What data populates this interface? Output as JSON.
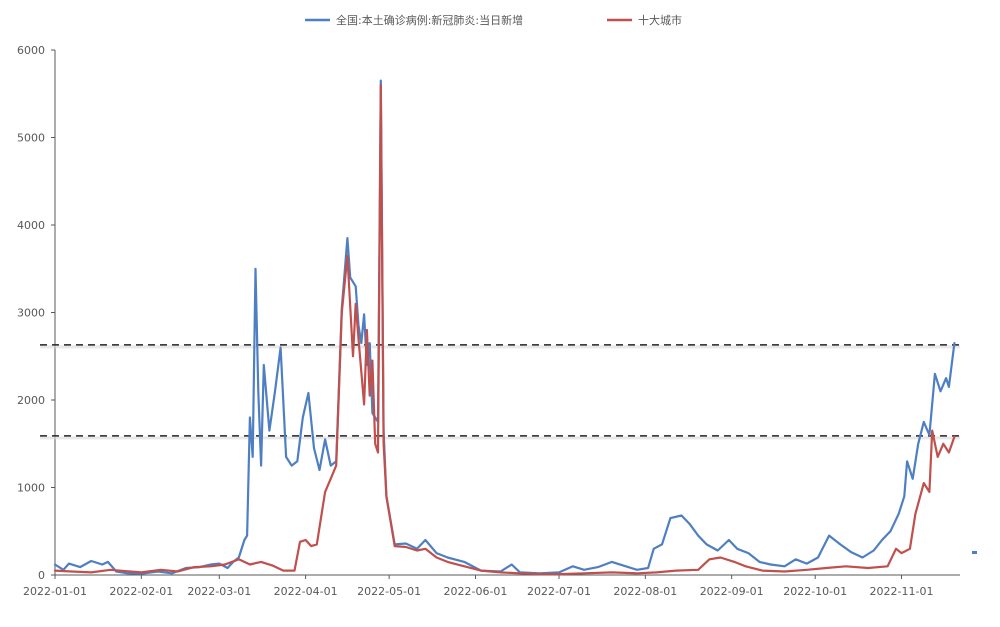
{
  "chart_data": {
    "type": "line",
    "y_ticks": [
      "0",
      "1000",
      "2000",
      "3000",
      "4000",
      "5000",
      "6000"
    ],
    "x_ticks": [
      "2022-01-01",
      "2022-02-01",
      "2022-03-01",
      "2022-04-01",
      "2022-05-01",
      "2022-06-01",
      "2022-07-01",
      "2022-08-01",
      "2022-09-01",
      "2022-10-01",
      "2022-11-01"
    ],
    "ylim": [
      0,
      6000
    ],
    "xlim": [
      "2022-01-01",
      "2022-11-22"
    ],
    "grid": false,
    "legend_position": "top-center",
    "reference_lines": [
      2630,
      1590
    ],
    "series": [
      {
        "name": "全国:本土确诊病例:新冠肺炎:当日新增",
        "color": "#4f7fc3",
        "points": [
          [
            "2022-01-01",
            120
          ],
          [
            "2022-01-04",
            60
          ],
          [
            "2022-01-06",
            130
          ],
          [
            "2022-01-10",
            90
          ],
          [
            "2022-01-14",
            160
          ],
          [
            "2022-01-18",
            120
          ],
          [
            "2022-01-20",
            150
          ],
          [
            "2022-01-23",
            40
          ],
          [
            "2022-01-27",
            20
          ],
          [
            "2022-02-01",
            15
          ],
          [
            "2022-02-07",
            40
          ],
          [
            "2022-02-12",
            20
          ],
          [
            "2022-02-17",
            80
          ],
          [
            "2022-02-22",
            90
          ],
          [
            "2022-02-26",
            120
          ],
          [
            "2022-03-01",
            130
          ],
          [
            "2022-03-04",
            80
          ],
          [
            "2022-03-06",
            150
          ],
          [
            "2022-03-08",
            200
          ],
          [
            "2022-03-10",
            400
          ],
          [
            "2022-03-11",
            450
          ],
          [
            "2022-03-12",
            1800
          ],
          [
            "2022-03-13",
            1350
          ],
          [
            "2022-03-14",
            3500
          ],
          [
            "2022-03-15",
            2100
          ],
          [
            "2022-03-16",
            1250
          ],
          [
            "2022-03-17",
            2400
          ],
          [
            "2022-03-19",
            1650
          ],
          [
            "2022-03-21",
            2100
          ],
          [
            "2022-03-23",
            2600
          ],
          [
            "2022-03-25",
            1350
          ],
          [
            "2022-03-27",
            1250
          ],
          [
            "2022-03-29",
            1300
          ],
          [
            "2022-03-31",
            1800
          ],
          [
            "2022-04-02",
            2080
          ],
          [
            "2022-04-04",
            1450
          ],
          [
            "2022-04-06",
            1200
          ],
          [
            "2022-04-08",
            1550
          ],
          [
            "2022-04-10",
            1250
          ],
          [
            "2022-04-12",
            1300
          ],
          [
            "2022-04-14",
            3050
          ],
          [
            "2022-04-16",
            3850
          ],
          [
            "2022-04-17",
            3400
          ],
          [
            "2022-04-19",
            3300
          ],
          [
            "2022-04-20",
            2850
          ],
          [
            "2022-04-21",
            2650
          ],
          [
            "2022-04-22",
            2980
          ],
          [
            "2022-04-23",
            2400
          ],
          [
            "2022-04-24",
            2650
          ],
          [
            "2022-04-25",
            1850
          ],
          [
            "2022-04-27",
            1750
          ],
          [
            "2022-04-28",
            5650
          ],
          [
            "2022-04-29",
            1650
          ],
          [
            "2022-04-30",
            900
          ],
          [
            "2022-05-03",
            350
          ],
          [
            "2022-05-07",
            360
          ],
          [
            "2022-05-11",
            300
          ],
          [
            "2022-05-14",
            400
          ],
          [
            "2022-05-18",
            250
          ],
          [
            "2022-05-22",
            200
          ],
          [
            "2022-05-28",
            150
          ],
          [
            "2022-06-03",
            50
          ],
          [
            "2022-06-10",
            40
          ],
          [
            "2022-06-14",
            120
          ],
          [
            "2022-06-17",
            30
          ],
          [
            "2022-06-24",
            20
          ],
          [
            "2022-07-01",
            30
          ],
          [
            "2022-07-06",
            100
          ],
          [
            "2022-07-10",
            60
          ],
          [
            "2022-07-15",
            90
          ],
          [
            "2022-07-20",
            150
          ],
          [
            "2022-07-25",
            100
          ],
          [
            "2022-07-29",
            60
          ],
          [
            "2022-08-02",
            80
          ],
          [
            "2022-08-04",
            300
          ],
          [
            "2022-08-07",
            350
          ],
          [
            "2022-08-10",
            650
          ],
          [
            "2022-08-14",
            680
          ],
          [
            "2022-08-17",
            580
          ],
          [
            "2022-08-20",
            450
          ],
          [
            "2022-08-23",
            350
          ],
          [
            "2022-08-27",
            280
          ],
          [
            "2022-08-31",
            400
          ],
          [
            "2022-09-03",
            300
          ],
          [
            "2022-09-07",
            250
          ],
          [
            "2022-09-11",
            150
          ],
          [
            "2022-09-15",
            120
          ],
          [
            "2022-09-20",
            100
          ],
          [
            "2022-09-24",
            180
          ],
          [
            "2022-09-28",
            130
          ],
          [
            "2022-10-02",
            200
          ],
          [
            "2022-10-06",
            450
          ],
          [
            "2022-10-10",
            350
          ],
          [
            "2022-10-14",
            260
          ],
          [
            "2022-10-18",
            200
          ],
          [
            "2022-10-22",
            280
          ],
          [
            "2022-10-25",
            400
          ],
          [
            "2022-10-28",
            500
          ],
          [
            "2022-10-31",
            700
          ],
          [
            "2022-11-02",
            900
          ],
          [
            "2022-11-03",
            1300
          ],
          [
            "2022-11-05",
            1100
          ],
          [
            "2022-11-07",
            1500
          ],
          [
            "2022-11-09",
            1750
          ],
          [
            "2022-11-11",
            1600
          ],
          [
            "2022-11-13",
            2300
          ],
          [
            "2022-11-15",
            2100
          ],
          [
            "2022-11-17",
            2250
          ],
          [
            "2022-11-18",
            2150
          ],
          [
            "2022-11-20",
            2650
          ]
        ]
      },
      {
        "name": "十大城市",
        "color": "#c0504d",
        "points": [
          [
            "2022-01-01",
            50
          ],
          [
            "2022-01-07",
            40
          ],
          [
            "2022-01-14",
            30
          ],
          [
            "2022-01-21",
            60
          ],
          [
            "2022-01-28",
            40
          ],
          [
            "2022-02-01",
            30
          ],
          [
            "2022-02-08",
            60
          ],
          [
            "2022-02-14",
            40
          ],
          [
            "2022-02-20",
            90
          ],
          [
            "2022-02-26",
            100
          ],
          [
            "2022-03-03",
            120
          ],
          [
            "2022-03-08",
            180
          ],
          [
            "2022-03-12",
            120
          ],
          [
            "2022-03-16",
            150
          ],
          [
            "2022-03-20",
            110
          ],
          [
            "2022-03-24",
            50
          ],
          [
            "2022-03-28",
            50
          ],
          [
            "2022-03-30",
            380
          ],
          [
            "2022-04-01",
            400
          ],
          [
            "2022-04-03",
            330
          ],
          [
            "2022-04-05",
            350
          ],
          [
            "2022-04-08",
            950
          ],
          [
            "2022-04-10",
            1100
          ],
          [
            "2022-04-12",
            1250
          ],
          [
            "2022-04-14",
            3000
          ],
          [
            "2022-04-16",
            3650
          ],
          [
            "2022-04-18",
            2500
          ],
          [
            "2022-04-19",
            3100
          ],
          [
            "2022-04-20",
            2700
          ],
          [
            "2022-04-22",
            1950
          ],
          [
            "2022-04-23",
            2800
          ],
          [
            "2022-04-24",
            2050
          ],
          [
            "2022-04-25",
            2450
          ],
          [
            "2022-04-26",
            1500
          ],
          [
            "2022-04-27",
            1400
          ],
          [
            "2022-04-28",
            5600
          ],
          [
            "2022-04-29",
            1500
          ],
          [
            "2022-04-30",
            900
          ],
          [
            "2022-05-03",
            330
          ],
          [
            "2022-05-07",
            320
          ],
          [
            "2022-05-11",
            280
          ],
          [
            "2022-05-14",
            300
          ],
          [
            "2022-05-18",
            200
          ],
          [
            "2022-05-22",
            150
          ],
          [
            "2022-05-28",
            100
          ],
          [
            "2022-06-03",
            50
          ],
          [
            "2022-06-10",
            30
          ],
          [
            "2022-06-17",
            20
          ],
          [
            "2022-06-24",
            10
          ],
          [
            "2022-07-01",
            10
          ],
          [
            "2022-07-10",
            20
          ],
          [
            "2022-07-20",
            30
          ],
          [
            "2022-07-29",
            20
          ],
          [
            "2022-08-05",
            30
          ],
          [
            "2022-08-12",
            50
          ],
          [
            "2022-08-20",
            60
          ],
          [
            "2022-08-24",
            180
          ],
          [
            "2022-08-28",
            200
          ],
          [
            "2022-09-02",
            150
          ],
          [
            "2022-09-06",
            100
          ],
          [
            "2022-09-12",
            50
          ],
          [
            "2022-09-20",
            40
          ],
          [
            "2022-09-28",
            60
          ],
          [
            "2022-10-05",
            80
          ],
          [
            "2022-10-12",
            100
          ],
          [
            "2022-10-20",
            80
          ],
          [
            "2022-10-27",
            100
          ],
          [
            "2022-10-30",
            300
          ],
          [
            "2022-11-01",
            250
          ],
          [
            "2022-11-04",
            300
          ],
          [
            "2022-11-06",
            700
          ],
          [
            "2022-11-09",
            1050
          ],
          [
            "2022-11-11",
            950
          ],
          [
            "2022-11-12",
            1650
          ],
          [
            "2022-11-14",
            1350
          ],
          [
            "2022-11-16",
            1500
          ],
          [
            "2022-11-18",
            1400
          ],
          [
            "2022-11-20",
            1580
          ]
        ]
      }
    ]
  }
}
